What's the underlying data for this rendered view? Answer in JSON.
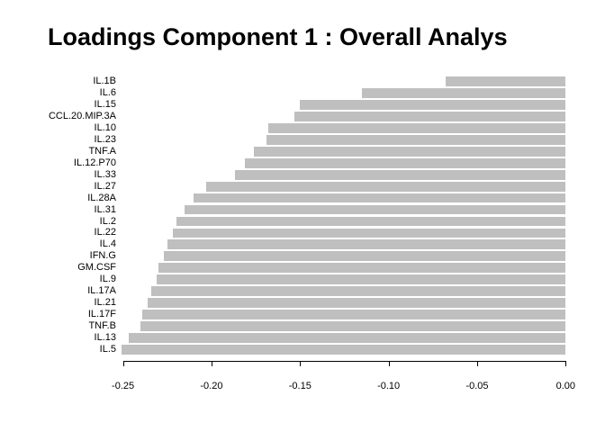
{
  "chart_data": {
    "type": "bar",
    "orientation": "horizontal",
    "title": "Loadings Component 1 : Overall Analys",
    "categories": [
      "IL.1B",
      "IL.6",
      "IL.15",
      "CCL.20.MIP.3A",
      "IL.10",
      "IL.23",
      "TNF.A",
      "IL.12.P70",
      "IL.33",
      "IL.27",
      "IL.28A",
      "IL.31",
      "IL.2",
      "IL.22",
      "IL.4",
      "IFN.G",
      "GM.CSF",
      "IL.9",
      "IL.17A",
      "IL.21",
      "IL.17F",
      "TNF.B",
      "IL.13",
      "IL.5"
    ],
    "values": [
      -0.068,
      -0.115,
      -0.15,
      -0.153,
      -0.168,
      -0.169,
      -0.176,
      -0.181,
      -0.187,
      -0.203,
      -0.21,
      -0.215,
      -0.22,
      -0.222,
      -0.225,
      -0.227,
      -0.23,
      -0.231,
      -0.234,
      -0.236,
      -0.239,
      -0.24,
      -0.247,
      -0.251
    ],
    "xlabel": "",
    "ylabel": "",
    "xlim": [
      -0.262,
      0.01
    ],
    "x_ticks": [
      -0.25,
      -0.2,
      -0.15,
      -0.1,
      -0.05,
      0.0
    ],
    "x_tick_labels": [
      "-0.25",
      "-0.20",
      "-0.15",
      "-0.10",
      "-0.05",
      "0.00"
    ],
    "grid": false,
    "bar_color": "#BFBFBF",
    "background_color": "#FFFFFF",
    "axis_color": "#000000",
    "text_color": "#000000"
  }
}
